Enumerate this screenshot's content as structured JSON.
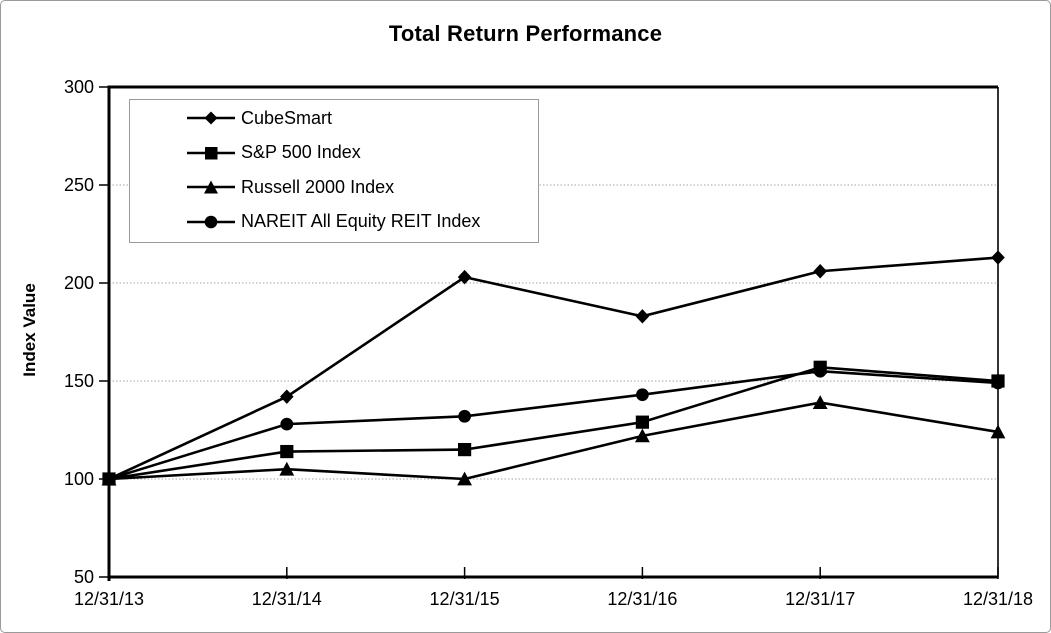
{
  "chart_data": {
    "type": "line",
    "title": "Total Return Performance",
    "ylabel": "Index Value",
    "xlabel": "",
    "categories": [
      "12/31/13",
      "12/31/14",
      "12/31/15",
      "12/31/16",
      "12/31/17",
      "12/31/18"
    ],
    "series": [
      {
        "name": "CubeSmart",
        "marker": "diamond",
        "color": "#000000",
        "values": [
          100,
          142,
          203,
          183,
          206,
          213
        ]
      },
      {
        "name": "S&P 500 Index",
        "marker": "square",
        "color": "#000000",
        "values": [
          100,
          114,
          115,
          129,
          157,
          150
        ]
      },
      {
        "name": "Russell 2000 Index",
        "marker": "triangle",
        "color": "#000000",
        "values": [
          100,
          105,
          100,
          122,
          139,
          124
        ]
      },
      {
        "name": "NAREIT All Equity REIT Index",
        "marker": "circle",
        "color": "#000000",
        "values": [
          100,
          128,
          132,
          143,
          155,
          149
        ]
      }
    ],
    "ylim": [
      50,
      300
    ],
    "ytick_step": 50,
    "y_tick_labels": [
      "50",
      "100",
      "150",
      "200",
      "250",
      "300"
    ],
    "grid": "horizontal-light-dotted",
    "legend_position": "top-left-inside",
    "line_color": "#000000",
    "gridline_color": "#a6a6a6"
  }
}
